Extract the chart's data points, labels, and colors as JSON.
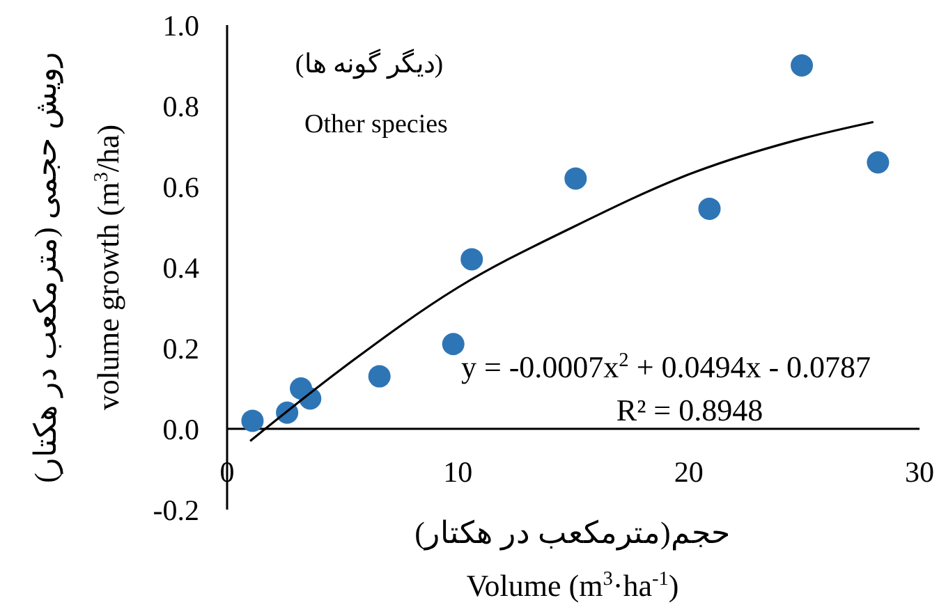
{
  "chart_data": {
    "type": "scatter",
    "title": "(دیگر گونه ها)",
    "subtitle": "Other species",
    "xlabel": "حجم(مترمکعب در هکتار)\nVolume (m$^{3}$·ha$^{-1}$)",
    "ylabel": "رویش حجمی (مترمکعب در هکتار)\nvolume growth (m$^{3}$/ha)",
    "annotations": [
      "y = -0.0007x$^{2}$ + 0.0494x - 0.0787",
      "R² = 0.8948"
    ],
    "xlim": [
      0,
      30
    ],
    "xticks": [
      0,
      10,
      20,
      30
    ],
    "ylim": [
      -0.2,
      1.0
    ],
    "yticks": [
      {
        "value": -0.2,
        "label": "-0.2"
      },
      {
        "value": 0,
        "label": "0.0"
      },
      {
        "value": 0.2,
        "label": "0.2"
      },
      {
        "value": 0.4,
        "label": "0.4"
      },
      {
        "value": 0.6,
        "label": "0.6"
      },
      {
        "value": 0.8,
        "label": "0.8"
      },
      {
        "value": 1.0,
        "label": "1.0"
      }
    ],
    "grid": false,
    "marker": "circle",
    "series": [
      {
        "color": "#2e75b6",
        "x": [
          1.1,
          2.6,
          3.2,
          3.6,
          6.6,
          9.8,
          10.6,
          15.1,
          20.9,
          24.9,
          28.2
        ],
        "values": [
          0.02,
          0.04,
          0.1,
          0.075,
          0.13,
          0.21,
          0.42,
          0.62,
          0.545,
          0.9,
          0.66
        ]
      },
      {
        "type": "line",
        "color": "#000000",
        "marker": "none",
        "x": [
          1,
          5,
          10,
          15,
          20,
          25,
          28
        ],
        "values": [
          -0.03,
          0.15,
          0.35,
          0.5,
          0.63,
          0.72,
          0.76
        ]
      }
    ]
  }
}
